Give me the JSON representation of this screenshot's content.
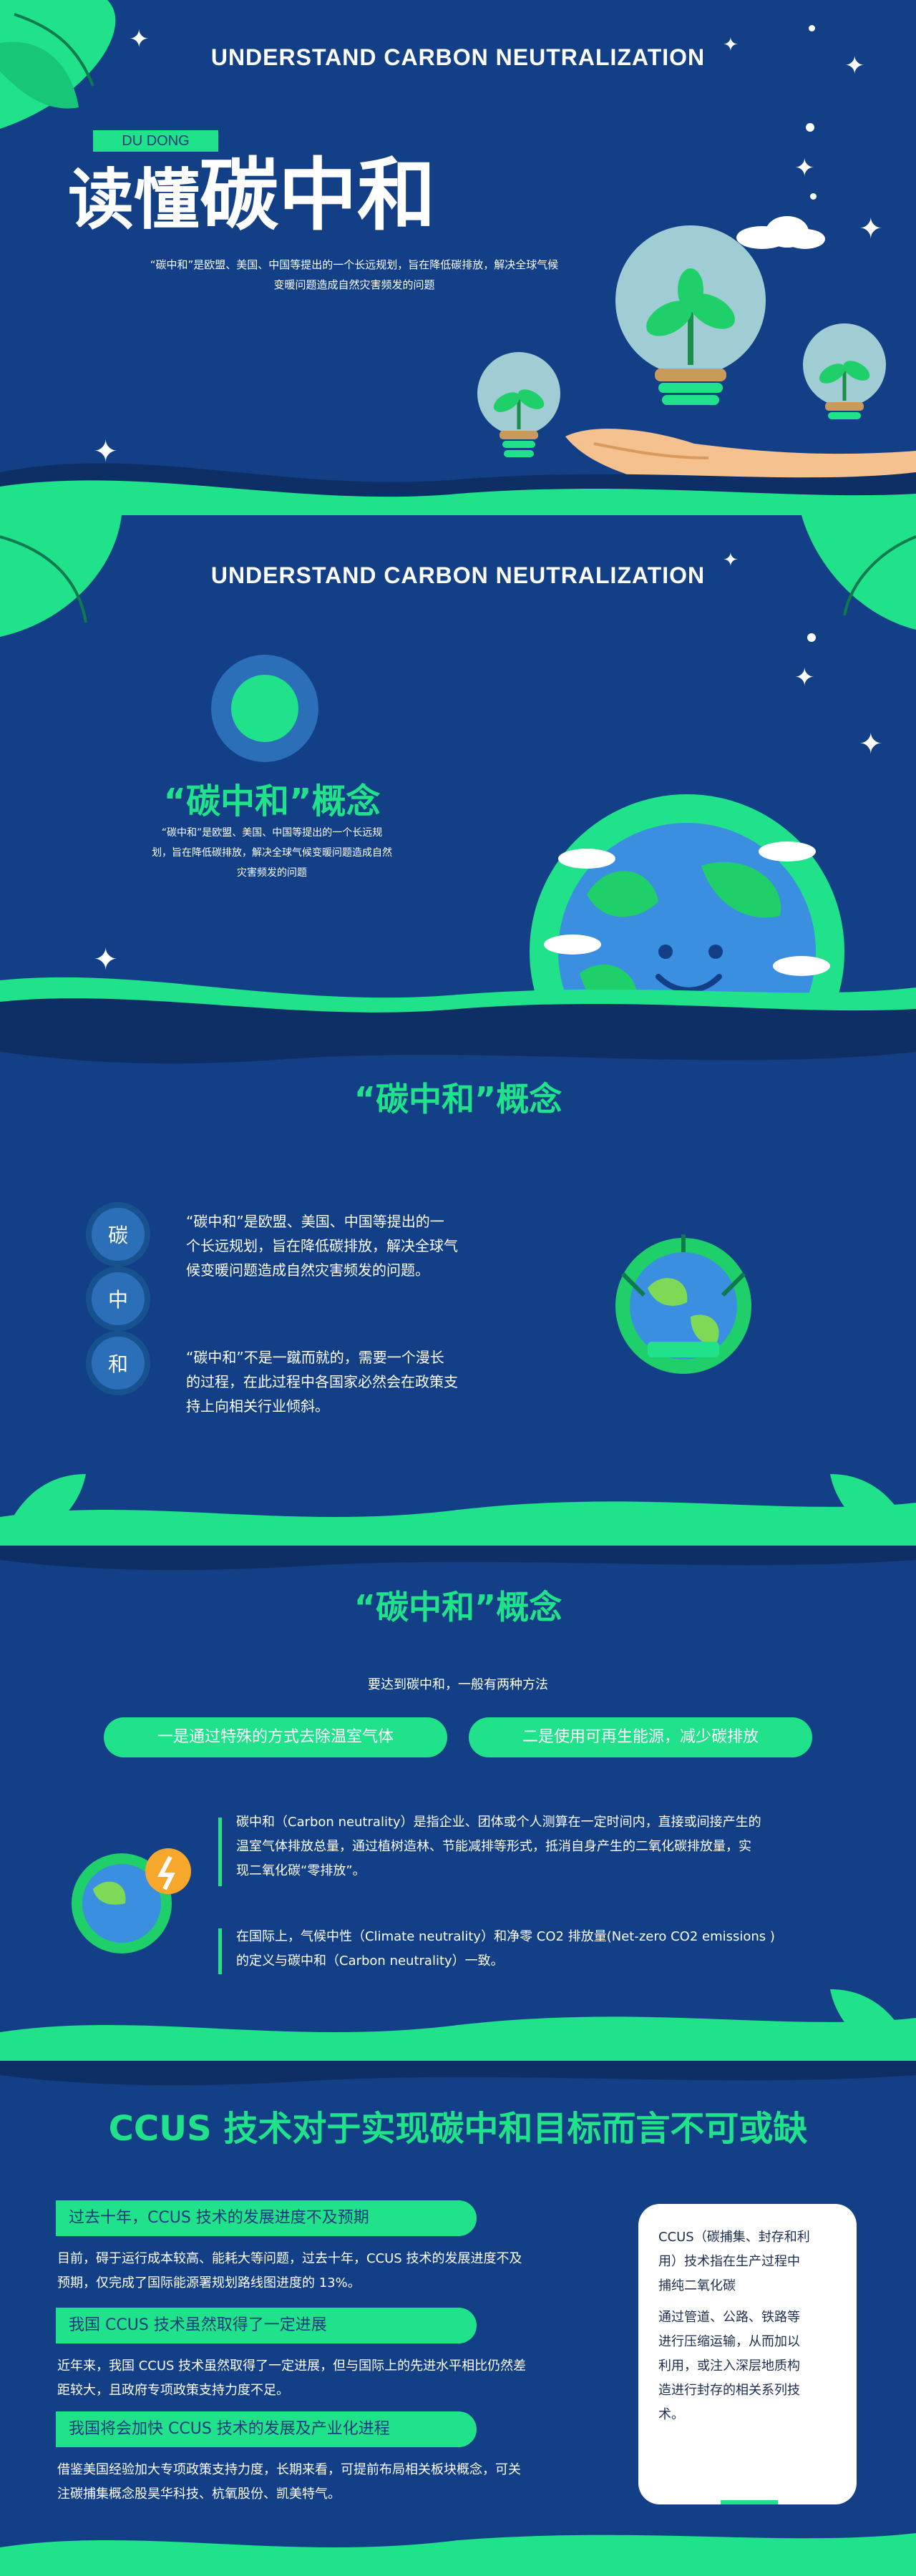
{
  "slide1": {
    "en_title": "UNDERSTAND CARBON NEUTRALIZATION",
    "badge": "DU DONG",
    "title_prefix": "读懂",
    "title_main": "碳中和",
    "desc_line1": "“碳中和”是欧盟、美国、中国等提出的一个长远规划，旨在降低碳排放，解决全球气候",
    "desc_line2": "变暖问题造成自然灾害频发的问题"
  },
  "slide2": {
    "en_title": "UNDERSTAND CARBON NEUTRALIZATION",
    "heading": "“碳中和”概念",
    "desc_line1": "“碳中和”是欧盟、美国、中国等提出的一个长远规",
    "desc_line2": "划，旨在降低碳排放，解决全球气候变暖问题造成自然",
    "desc_line3": "灾害频发的问题"
  },
  "slide3": {
    "heading": "“碳中和”概念",
    "chars": [
      "碳",
      "中",
      "和"
    ],
    "para1_l1": "“碳中和”是欧盟、美国、中国等提出的一",
    "para1_l2": "个长远规划，旨在降低碳排放，解决全球气",
    "para1_l3": "候变暖问题造成自然灾害频发的问题。",
    "para2_l1": "“碳中和”不是一蹴而就的，需要一个漫长",
    "para2_l2": "的过程，在此过程中各国家必然会在政策支",
    "para2_l3": "持上向相关行业倾斜。"
  },
  "slide4": {
    "heading": "“碳中和”概念",
    "intro": "要达到碳中和，一般有两种方法",
    "method1": "一是通过特殊的方式去除温室气体",
    "method2": "二是使用可再生能源，减少碳排放",
    "para1_l1": "碳中和（Carbon neutrality）是指企业、团体或个人测算在一定时间内，直接或间接产生的",
    "para1_l2": "温室气体排放总量，通过植树造林、节能减排等形式，抵消自身产生的二氧化碳排放量，实",
    "para1_l3": "现二氧化碳“零排放”。",
    "para2_l1": "在国际上，气候中性（Climate neutrality）和净零 CO2 排放量(Net-zero CO2 emissions )",
    "para2_l2": "的定义与碳中和（Carbon neutrality）一致。"
  },
  "slide5": {
    "heading": "CCUS 技术对于实现碳中和目标而言不可或缺",
    "sub1": "过去十年，CCUS 技术的发展进度不及预期",
    "text1_l1": "目前，碍于运行成本较高、能耗大等问题，过去十年，CCUS 技术的发展进度不及",
    "text1_l2": "预期，仅完成了国际能源署规划路线图进度的 13%。",
    "sub2": "我国 CCUS 技术虽然取得了一定进展",
    "text2_l1": "近年来，我国 CCUS 技术虽然取得了一定进展，但与国际上的先进水平相比仍然差",
    "text2_l2": "距较大，且政府专项政策支持力度不足。",
    "sub3": "我国将会加快 CCUS 技术的发展及产业化进程",
    "text3_l1": "借鉴美国经验加大专项政策支持力度，长期来看，可提前布局相关板块概念，可关",
    "text3_l2": "注碳捕集概念股昊华科技、杭氧股份、凯美特气。",
    "card_l1": "CCUS（碳捕集、封存和利",
    "card_l2": "用）技术指在生产过程中",
    "card_l3": "捕纯二氧化碳",
    "card_l4": "通过管道、公路、铁路等",
    "card_l5": "进行压缩运输，从而加以",
    "card_l6": "利用，或注入深层地质构",
    "card_l7": "造进行封存的相关系列技",
    "card_l8": "术。"
  },
  "colors": {
    "bg": "#123f86",
    "accent": "#1fe28a"
  }
}
